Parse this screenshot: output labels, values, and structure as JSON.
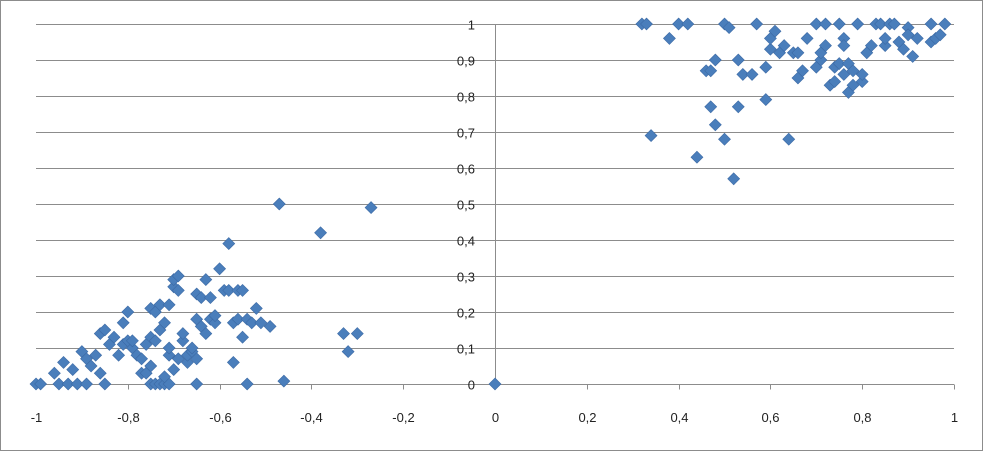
{
  "chart_data": {
    "type": "scatter",
    "title": "",
    "xlabel": "",
    "ylabel": "",
    "xlim": [
      -1,
      1
    ],
    "ylim": [
      0,
      1
    ],
    "grid": "horizontal",
    "legend": "none",
    "marker": "diamond",
    "marker_color": "#4a7ebb",
    "x_ticks": [
      -1,
      -0.8,
      -0.6,
      -0.4,
      -0.2,
      0,
      0.2,
      0.4,
      0.6,
      0.8,
      1
    ],
    "x_tick_labels": [
      "-1",
      "-0,8",
      "-0,6",
      "-0,4",
      "-0,2",
      "0",
      "0,2",
      "0,4",
      "0,6",
      "0,8",
      "1"
    ],
    "y_ticks": [
      0,
      0.1,
      0.2,
      0.3,
      0.4,
      0.5,
      0.6,
      0.7,
      0.8,
      0.9,
      1
    ],
    "y_tick_labels": [
      "0",
      "0,1",
      "0,2",
      "0,3",
      "0,4",
      "0,5",
      "0,6",
      "0,7",
      "0,8",
      "0,9",
      "1"
    ],
    "series": [
      {
        "points": [
          [
            -1.0,
            0.0
          ],
          [
            -0.99,
            0.0
          ],
          [
            -0.95,
            0.0
          ],
          [
            -0.93,
            0.0
          ],
          [
            -0.91,
            0.0
          ],
          [
            -0.89,
            0.0
          ],
          [
            -0.85,
            0.0
          ],
          [
            -0.75,
            0.0
          ],
          [
            -0.74,
            0.0
          ],
          [
            -0.73,
            0.0
          ],
          [
            -0.72,
            0.0
          ],
          [
            -0.71,
            0.0
          ],
          [
            -0.65,
            0.0
          ],
          [
            -0.54,
            0.0
          ],
          [
            -0.46,
            0.008
          ],
          [
            -0.96,
            0.03
          ],
          [
            -0.94,
            0.06
          ],
          [
            -0.92,
            0.04
          ],
          [
            -0.9,
            0.09
          ],
          [
            -0.89,
            0.07
          ],
          [
            -0.88,
            0.05
          ],
          [
            -0.87,
            0.08
          ],
          [
            -0.86,
            0.03
          ],
          [
            -0.86,
            0.14
          ],
          [
            -0.85,
            0.15
          ],
          [
            -0.84,
            0.11
          ],
          [
            -0.83,
            0.13
          ],
          [
            -0.82,
            0.08
          ],
          [
            -0.81,
            0.17
          ],
          [
            -0.81,
            0.11
          ],
          [
            -0.8,
            0.12
          ],
          [
            -0.8,
            0.2
          ],
          [
            -0.79,
            0.1
          ],
          [
            -0.79,
            0.12
          ],
          [
            -0.78,
            0.08
          ],
          [
            -0.77,
            0.03
          ],
          [
            -0.77,
            0.07
          ],
          [
            -0.76,
            0.11
          ],
          [
            -0.76,
            0.03
          ],
          [
            -0.75,
            0.05
          ],
          [
            -0.75,
            0.13
          ],
          [
            -0.75,
            0.21
          ],
          [
            -0.74,
            0.2
          ],
          [
            -0.74,
            0.12
          ],
          [
            -0.73,
            0.15
          ],
          [
            -0.73,
            0.22
          ],
          [
            -0.72,
            0.17
          ],
          [
            -0.72,
            0.02
          ],
          [
            -0.71,
            0.08
          ],
          [
            -0.71,
            0.22
          ],
          [
            -0.71,
            0.1
          ],
          [
            -0.7,
            0.27
          ],
          [
            -0.7,
            0.29
          ],
          [
            -0.7,
            0.04
          ],
          [
            -0.69,
            0.07
          ],
          [
            -0.69,
            0.26
          ],
          [
            -0.69,
            0.3
          ],
          [
            -0.68,
            0.12
          ],
          [
            -0.68,
            0.14
          ],
          [
            -0.67,
            0.06
          ],
          [
            -0.67,
            0.08
          ],
          [
            -0.66,
            0.09
          ],
          [
            -0.66,
            0.1
          ],
          [
            -0.65,
            0.07
          ],
          [
            -0.65,
            0.18
          ],
          [
            -0.65,
            0.25
          ],
          [
            -0.64,
            0.16
          ],
          [
            -0.64,
            0.24
          ],
          [
            -0.63,
            0.14
          ],
          [
            -0.63,
            0.29
          ],
          [
            -0.62,
            0.18
          ],
          [
            -0.62,
            0.24
          ],
          [
            -0.61,
            0.17
          ],
          [
            -0.61,
            0.19
          ],
          [
            -0.6,
            0.32
          ],
          [
            -0.59,
            0.26
          ],
          [
            -0.58,
            0.39
          ],
          [
            -0.58,
            0.26
          ],
          [
            -0.57,
            0.06
          ],
          [
            -0.57,
            0.17
          ],
          [
            -0.56,
            0.18
          ],
          [
            -0.56,
            0.26
          ],
          [
            -0.55,
            0.13
          ],
          [
            -0.55,
            0.26
          ],
          [
            -0.54,
            0.18
          ],
          [
            -0.53,
            0.17
          ],
          [
            -0.52,
            0.21
          ],
          [
            -0.51,
            0.17
          ],
          [
            -0.49,
            0.16
          ],
          [
            -0.47,
            0.5
          ],
          [
            -0.38,
            0.42
          ],
          [
            -0.33,
            0.14
          ],
          [
            -0.32,
            0.09
          ],
          [
            -0.3,
            0.14
          ],
          [
            -0.27,
            0.49
          ],
          [
            0.0,
            0.0
          ],
          [
            0.32,
            1.0
          ],
          [
            0.33,
            1.0
          ],
          [
            0.34,
            0.69
          ],
          [
            0.38,
            0.96
          ],
          [
            0.4,
            1.0
          ],
          [
            0.42,
            1.0
          ],
          [
            0.44,
            0.63
          ],
          [
            0.46,
            0.87
          ],
          [
            0.47,
            0.77
          ],
          [
            0.47,
            0.87
          ],
          [
            0.48,
            0.72
          ],
          [
            0.48,
            0.9
          ],
          [
            0.5,
            0.68
          ],
          [
            0.5,
            1.0
          ],
          [
            0.51,
            0.99
          ],
          [
            0.52,
            0.57
          ],
          [
            0.53,
            0.77
          ],
          [
            0.53,
            0.9
          ],
          [
            0.54,
            0.86
          ],
          [
            0.56,
            0.86
          ],
          [
            0.57,
            1.0
          ],
          [
            0.59,
            0.88
          ],
          [
            0.59,
            0.79
          ],
          [
            0.6,
            0.93
          ],
          [
            0.6,
            0.96
          ],
          [
            0.61,
            0.98
          ],
          [
            0.62,
            0.92
          ],
          [
            0.63,
            0.94
          ],
          [
            0.64,
            0.68
          ],
          [
            0.65,
            0.92
          ],
          [
            0.66,
            0.92
          ],
          [
            0.66,
            0.85
          ],
          [
            0.67,
            0.87
          ],
          [
            0.68,
            0.96
          ],
          [
            0.7,
            1.0
          ],
          [
            0.7,
            0.88
          ],
          [
            0.71,
            0.9
          ],
          [
            0.71,
            0.92
          ],
          [
            0.72,
            1.0
          ],
          [
            0.72,
            0.94
          ],
          [
            0.73,
            0.83
          ],
          [
            0.74,
            0.84
          ],
          [
            0.74,
            0.88
          ],
          [
            0.75,
            0.89
          ],
          [
            0.75,
            1.0
          ],
          [
            0.76,
            0.86
          ],
          [
            0.76,
            0.96
          ],
          [
            0.76,
            0.94
          ],
          [
            0.77,
            0.81
          ],
          [
            0.77,
            0.89
          ],
          [
            0.78,
            0.83
          ],
          [
            0.78,
            0.87
          ],
          [
            0.79,
            1.0
          ],
          [
            0.8,
            0.84
          ],
          [
            0.8,
            0.86
          ],
          [
            0.81,
            0.92
          ],
          [
            0.82,
            0.94
          ],
          [
            0.83,
            1.0
          ],
          [
            0.84,
            1.0
          ],
          [
            0.85,
            0.94
          ],
          [
            0.85,
            0.96
          ],
          [
            0.86,
            1.0
          ],
          [
            0.87,
            1.0
          ],
          [
            0.88,
            0.95
          ],
          [
            0.89,
            0.93
          ],
          [
            0.9,
            0.99
          ],
          [
            0.9,
            0.97
          ],
          [
            0.91,
            0.91
          ],
          [
            0.92,
            0.96
          ],
          [
            0.95,
            1.0
          ],
          [
            0.95,
            0.95
          ],
          [
            0.96,
            0.96
          ],
          [
            0.97,
            0.97
          ],
          [
            0.98,
            1.0
          ]
        ]
      }
    ]
  }
}
